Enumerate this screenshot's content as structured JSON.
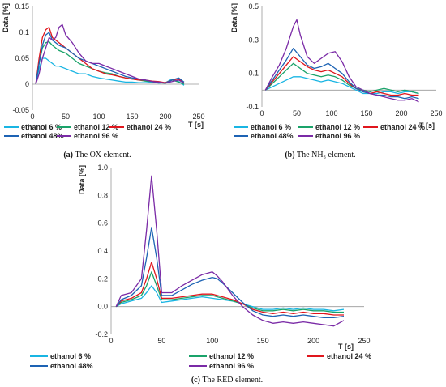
{
  "colors": {
    "ethanol 6 %": "#19b5e3",
    "ethanol 12 %": "#1aa36a",
    "ethanol 24 %": "#e0161d",
    "ethanol 48%": "#1d63b4",
    "ethanol 96 %": "#7a2aa6"
  },
  "chart_data": [
    {
      "type": "line",
      "caption_label": "(a)",
      "caption_text": "The OX element.",
      "xlabel": "T [s]",
      "ylabel": "Data [%]",
      "xlim": [
        0,
        250
      ],
      "ylim": [
        -0.05,
        0.15
      ],
      "xticks": [
        0,
        50,
        100,
        150,
        200,
        250
      ],
      "yticks": [
        -0.05,
        0,
        0.05,
        0.1,
        0.15
      ],
      "ytick_labels": [
        "-0.05",
        "0",
        "0.05",
        "0.1",
        "0.15"
      ],
      "legend": [
        "ethanol 6 %",
        "ethanol 12 %",
        "ethanol 24 %",
        "ethanol 48%",
        "ethanol 96 %"
      ],
      "series": [
        {
          "name": "ethanol 6 %",
          "x": [
            5,
            10,
            15,
            20,
            25,
            30,
            35,
            40,
            50,
            60,
            70,
            80,
            90,
            100,
            110,
            120,
            130,
            140,
            150,
            160,
            170,
            180,
            190,
            200,
            210,
            220,
            228
          ],
          "y": [
            0,
            0.03,
            0.05,
            0.05,
            0.045,
            0.04,
            0.035,
            0.035,
            0.03,
            0.025,
            0.02,
            0.02,
            0.015,
            0.012,
            0.01,
            0.008,
            0.006,
            0.004,
            0.004,
            0.003,
            0.003,
            0.004,
            0.002,
            0.003,
            0.01,
            0.005,
            -0.002
          ]
        },
        {
          "name": "ethanol 12 %",
          "x": [
            5,
            10,
            15,
            20,
            25,
            30,
            35,
            40,
            50,
            60,
            70,
            80,
            90,
            100,
            110,
            120,
            130,
            140,
            150,
            160,
            170,
            180,
            190,
            200,
            210,
            220,
            228
          ],
          "y": [
            0,
            0.04,
            0.07,
            0.08,
            0.082,
            0.075,
            0.07,
            0.065,
            0.06,
            0.05,
            0.04,
            0.035,
            0.03,
            0.025,
            0.022,
            0.02,
            0.015,
            0.012,
            0.01,
            0.008,
            0.006,
            0.005,
            0.003,
            0.002,
            0.008,
            0.004,
            0
          ]
        },
        {
          "name": "ethanol 24 %",
          "x": [
            5,
            10,
            15,
            20,
            25,
            30,
            35,
            40,
            50,
            60,
            70,
            80,
            90,
            100,
            110,
            120,
            130,
            140,
            150,
            160,
            170,
            180,
            190,
            200,
            210,
            220,
            228
          ],
          "y": [
            0,
            0.05,
            0.09,
            0.105,
            0.11,
            0.09,
            0.085,
            0.08,
            0.07,
            0.06,
            0.05,
            0.04,
            0.03,
            0.025,
            0.02,
            0.018,
            0.015,
            0.012,
            0.01,
            0.008,
            0.008,
            0.006,
            0.005,
            0.003,
            0.008,
            0.01,
            0.002
          ]
        },
        {
          "name": "ethanol 48%",
          "x": [
            5,
            10,
            15,
            20,
            25,
            30,
            35,
            40,
            50,
            60,
            70,
            80,
            90,
            100,
            110,
            120,
            130,
            140,
            150,
            160,
            170,
            180,
            190,
            200,
            210,
            220,
            228
          ],
          "y": [
            0,
            0.04,
            0.075,
            0.095,
            0.1,
            0.085,
            0.08,
            0.075,
            0.07,
            0.06,
            0.05,
            0.045,
            0.04,
            0.035,
            0.03,
            0.025,
            0.02,
            0.015,
            0.012,
            0.01,
            0.008,
            0.005,
            0.003,
            0.002,
            0.008,
            0.012,
            0.004
          ]
        },
        {
          "name": "ethanol 96 %",
          "x": [
            5,
            10,
            15,
            20,
            25,
            30,
            35,
            40,
            45,
            50,
            60,
            70,
            80,
            90,
            100,
            110,
            120,
            130,
            140,
            150,
            160,
            170,
            180,
            190,
            200,
            210,
            220,
            228
          ],
          "y": [
            0,
            0.02,
            0.05,
            0.07,
            0.09,
            0.085,
            0.09,
            0.11,
            0.115,
            0.095,
            0.08,
            0.06,
            0.045,
            0.04,
            0.04,
            0.035,
            0.03,
            0.025,
            0.02,
            0.015,
            0.01,
            0.008,
            0.005,
            0.004,
            0.002,
            0.005,
            0.008,
            0.002
          ]
        }
      ]
    },
    {
      "type": "line",
      "caption_label": "(b)",
      "caption_text": "The NH₃ element.",
      "xlabel": "T [s]",
      "ylabel": "Data [%]",
      "xlim": [
        0,
        250
      ],
      "ylim": [
        -0.1,
        0.5
      ],
      "xticks": [
        0,
        50,
        100,
        150,
        200,
        250
      ],
      "yticks": [
        -0.1,
        0.1,
        0.3,
        0.5
      ],
      "ytick_labels": [
        "-0.1",
        "0.1",
        "0.3",
        "0.5"
      ],
      "legend": [
        "ethanol 6 %",
        "ethanol 12 %",
        "ethanol 24 %",
        "ethanol 48%",
        "ethanol 96 %"
      ],
      "series": [
        {
          "name": "ethanol 6 %",
          "x": [
            5,
            15,
            25,
            35,
            45,
            55,
            65,
            75,
            85,
            95,
            105,
            115,
            125,
            135,
            145,
            155,
            165,
            175,
            185,
            195,
            205,
            215,
            225
          ],
          "y": [
            0,
            0.02,
            0.04,
            0.06,
            0.08,
            0.08,
            0.07,
            0.06,
            0.05,
            0.06,
            0.05,
            0.04,
            0.02,
            0.0,
            -0.02,
            -0.02,
            -0.02,
            -0.01,
            -0.01,
            -0.02,
            -0.01,
            -0.01,
            -0.02
          ]
        },
        {
          "name": "ethanol 12 %",
          "x": [
            5,
            15,
            25,
            35,
            45,
            55,
            65,
            75,
            85,
            95,
            105,
            115,
            125,
            135,
            145,
            155,
            165,
            175,
            185,
            195,
            205,
            215,
            225
          ],
          "y": [
            0,
            0.04,
            0.08,
            0.12,
            0.16,
            0.13,
            0.1,
            0.09,
            0.08,
            0.09,
            0.08,
            0.06,
            0.03,
            0.01,
            0.0,
            -0.01,
            0.0,
            0.01,
            0.0,
            -0.01,
            0.0,
            -0.01,
            -0.02
          ]
        },
        {
          "name": "ethanol 24 %",
          "x": [
            5,
            15,
            25,
            35,
            45,
            55,
            65,
            75,
            85,
            95,
            105,
            115,
            125,
            135,
            145,
            155,
            165,
            175,
            185,
            195,
            205,
            215,
            225
          ],
          "y": [
            0,
            0.05,
            0.1,
            0.15,
            0.2,
            0.17,
            0.14,
            0.12,
            0.11,
            0.12,
            0.1,
            0.08,
            0.04,
            0.01,
            -0.01,
            -0.02,
            -0.01,
            -0.02,
            -0.03,
            -0.03,
            -0.02,
            -0.03,
            -0.03
          ]
        },
        {
          "name": "ethanol 48%",
          "x": [
            5,
            15,
            25,
            35,
            45,
            55,
            65,
            75,
            85,
            95,
            105,
            115,
            125,
            135,
            145,
            155,
            165,
            175,
            185,
            195,
            205,
            215,
            225
          ],
          "y": [
            0,
            0.06,
            0.12,
            0.18,
            0.25,
            0.2,
            0.15,
            0.13,
            0.14,
            0.16,
            0.13,
            0.1,
            0.05,
            0.01,
            -0.01,
            -0.02,
            -0.03,
            -0.03,
            -0.04,
            -0.04,
            -0.05,
            -0.04,
            -0.05
          ]
        },
        {
          "name": "ethanol 96 %",
          "x": [
            5,
            15,
            25,
            35,
            45,
            50,
            55,
            65,
            75,
            85,
            95,
            105,
            115,
            125,
            135,
            145,
            155,
            165,
            175,
            185,
            195,
            205,
            215,
            225
          ],
          "y": [
            0,
            0.08,
            0.15,
            0.25,
            0.38,
            0.42,
            0.33,
            0.2,
            0.16,
            0.19,
            0.22,
            0.23,
            0.17,
            0.08,
            0.02,
            0.0,
            -0.02,
            -0.03,
            -0.04,
            -0.05,
            -0.06,
            -0.06,
            -0.05,
            -0.07
          ]
        }
      ]
    },
    {
      "type": "line",
      "caption_label": "(c)",
      "caption_text": "The RED element.",
      "xlabel": "T [s]",
      "ylabel": "Data [%]",
      "xlim": [
        0,
        250
      ],
      "ylim": [
        -0.2,
        1.0
      ],
      "xticks": [
        0,
        50,
        100,
        150,
        200,
        250
      ],
      "yticks": [
        -0.2,
        0,
        0.2,
        0.4,
        0.6,
        0.8,
        1.0
      ],
      "ytick_labels": [
        "-0.2",
        "0.0",
        "0.2",
        "0.4",
        "0.6",
        "0.8",
        "1.0"
      ],
      "legend": [
        "ethanol 6 %",
        "ethanol 12 %",
        "ethanol 24 %",
        "ethanol 48%",
        "ethanol 96 %"
      ],
      "series": [
        {
          "name": "ethanol 6 %",
          "x": [
            5,
            10,
            20,
            30,
            35,
            40,
            45,
            50,
            60,
            70,
            80,
            90,
            100,
            110,
            120,
            130,
            140,
            150,
            160,
            170,
            180,
            190,
            200,
            210,
            220,
            230
          ],
          "y": [
            0,
            0.02,
            0.04,
            0.06,
            0.1,
            0.15,
            0.1,
            0.03,
            0.04,
            0.05,
            0.06,
            0.07,
            0.06,
            0.05,
            0.04,
            0.02,
            0.0,
            -0.02,
            -0.02,
            -0.01,
            -0.02,
            -0.01,
            -0.02,
            -0.02,
            -0.03,
            -0.02
          ]
        },
        {
          "name": "ethanol 12 %",
          "x": [
            5,
            10,
            20,
            30,
            35,
            40,
            45,
            50,
            60,
            70,
            80,
            90,
            100,
            110,
            120,
            130,
            140,
            150,
            160,
            170,
            180,
            190,
            200,
            210,
            220,
            230
          ],
          "y": [
            0,
            0.03,
            0.05,
            0.08,
            0.15,
            0.25,
            0.15,
            0.05,
            0.05,
            0.06,
            0.07,
            0.08,
            0.08,
            0.06,
            0.04,
            0.02,
            -0.01,
            -0.03,
            -0.03,
            -0.02,
            -0.03,
            -0.02,
            -0.03,
            -0.03,
            -0.04,
            -0.04
          ]
        },
        {
          "name": "ethanol 24 %",
          "x": [
            5,
            10,
            20,
            30,
            35,
            40,
            45,
            50,
            60,
            70,
            80,
            90,
            100,
            110,
            120,
            130,
            140,
            150,
            160,
            170,
            180,
            190,
            200,
            210,
            220,
            230
          ],
          "y": [
            0,
            0.04,
            0.06,
            0.1,
            0.2,
            0.32,
            0.2,
            0.06,
            0.06,
            0.07,
            0.08,
            0.09,
            0.09,
            0.07,
            0.05,
            0.02,
            -0.02,
            -0.04,
            -0.05,
            -0.04,
            -0.05,
            -0.04,
            -0.05,
            -0.05,
            -0.06,
            -0.06
          ]
        },
        {
          "name": "ethanol 48%",
          "x": [
            5,
            10,
            20,
            30,
            35,
            40,
            45,
            50,
            60,
            70,
            80,
            90,
            100,
            105,
            110,
            120,
            130,
            140,
            150,
            160,
            170,
            180,
            190,
            200,
            210,
            220,
            230
          ],
          "y": [
            0,
            0.05,
            0.08,
            0.15,
            0.35,
            0.57,
            0.35,
            0.08,
            0.08,
            0.12,
            0.16,
            0.19,
            0.21,
            0.2,
            0.17,
            0.1,
            0.03,
            -0.03,
            -0.06,
            -0.07,
            -0.06,
            -0.07,
            -0.06,
            -0.07,
            -0.08,
            -0.08,
            -0.07
          ]
        },
        {
          "name": "ethanol 96 %",
          "x": [
            5,
            10,
            20,
            30,
            35,
            40,
            45,
            50,
            60,
            70,
            80,
            90,
            100,
            105,
            110,
            120,
            130,
            140,
            150,
            160,
            170,
            180,
            190,
            200,
            210,
            220,
            230
          ],
          "y": [
            0,
            0.08,
            0.1,
            0.2,
            0.55,
            0.94,
            0.55,
            0.1,
            0.1,
            0.15,
            0.19,
            0.23,
            0.25,
            0.22,
            0.18,
            0.08,
            0.0,
            -0.06,
            -0.1,
            -0.12,
            -0.11,
            -0.12,
            -0.11,
            -0.12,
            -0.13,
            -0.14,
            -0.1
          ]
        }
      ]
    }
  ]
}
